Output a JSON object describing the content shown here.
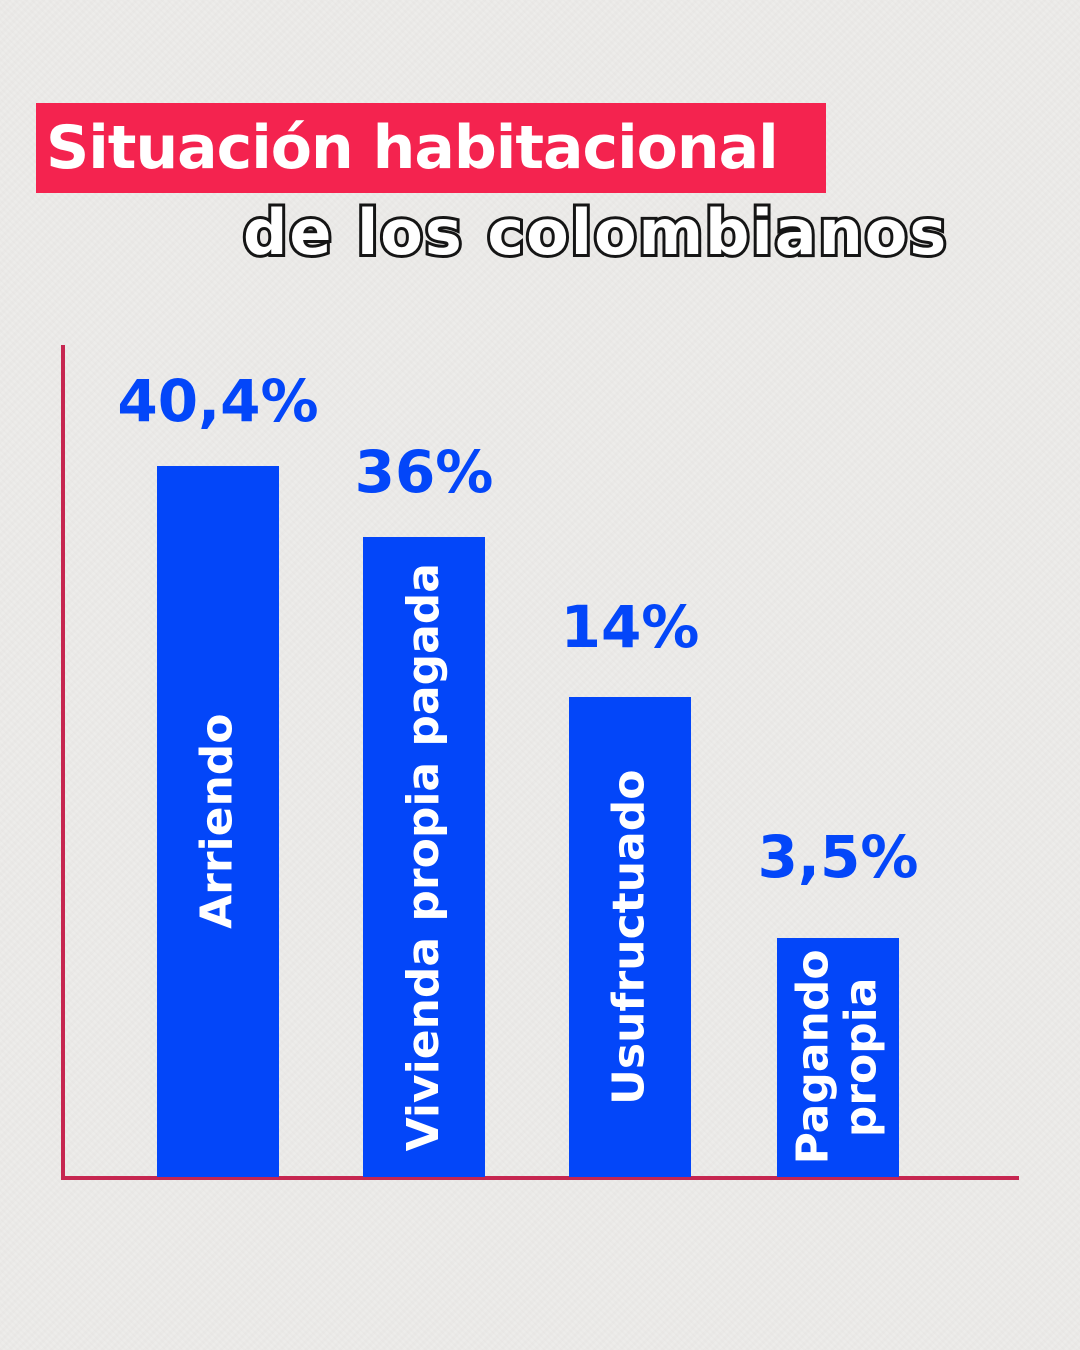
{
  "header": {
    "title": "Situación habitacional",
    "subtitle": "de los colombianos",
    "title_bg_color": "#f4234f",
    "title_text_color": "#ffffff",
    "subtitle_fill_color": "#ffffff",
    "subtitle_outline_color": "#151515"
  },
  "page": {
    "background_color": "#edecea"
  },
  "chart_data": {
    "type": "bar",
    "title": "Situación habitacional de los colombianos",
    "categories": [
      "Arriendo",
      "Vivienda propia pagada",
      "Usufructuado",
      "Pagando propia"
    ],
    "values": [
      40.4,
      36,
      14,
      3.5
    ],
    "value_labels": [
      "40,4%",
      "36%",
      "14%",
      "3,5%"
    ],
    "xlabel": "",
    "ylabel": "",
    "ylim": [
      0,
      45
    ],
    "grid": false,
    "legend": false,
    "orientation": "vertical",
    "bar_color": "#0346f9",
    "value_label_color": "#0346f9",
    "category_label_color": "#ffffff",
    "axis_color": "#c62650",
    "axis_ticks": "none",
    "note": "bar heights in source graphic are not drawn proportionally to values"
  }
}
